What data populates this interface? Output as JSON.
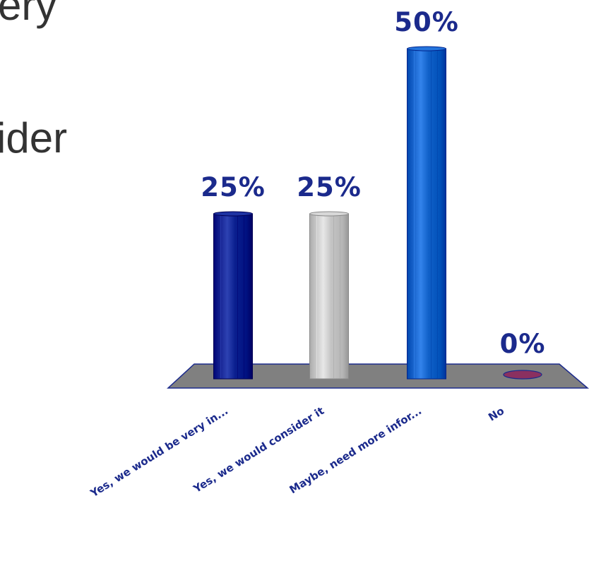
{
  "slide": {
    "text_line_1": "ery",
    "text_line_2": "ider"
  },
  "colors": {
    "label_text": "#1b2a8c",
    "floor_fill": "#808080",
    "floor_stroke": "#1b2a8c",
    "bar_1": "#0a1f8f",
    "bar_2": "#c4c4c4",
    "bar_3": "#1060c8",
    "bar_4": "#8a3060"
  },
  "chart_data": {
    "type": "bar",
    "categories": [
      "Yes, we would be very in...",
      "Yes, we would consider it",
      "Maybe, need more infor...",
      "No"
    ],
    "values": [
      25,
      25,
      50,
      0
    ],
    "value_labels": [
      "25%",
      "25%",
      "50%",
      "0%"
    ],
    "ylim": [
      0,
      50
    ],
    "grid": false,
    "legend": "none",
    "style": "3d-cylinder"
  }
}
